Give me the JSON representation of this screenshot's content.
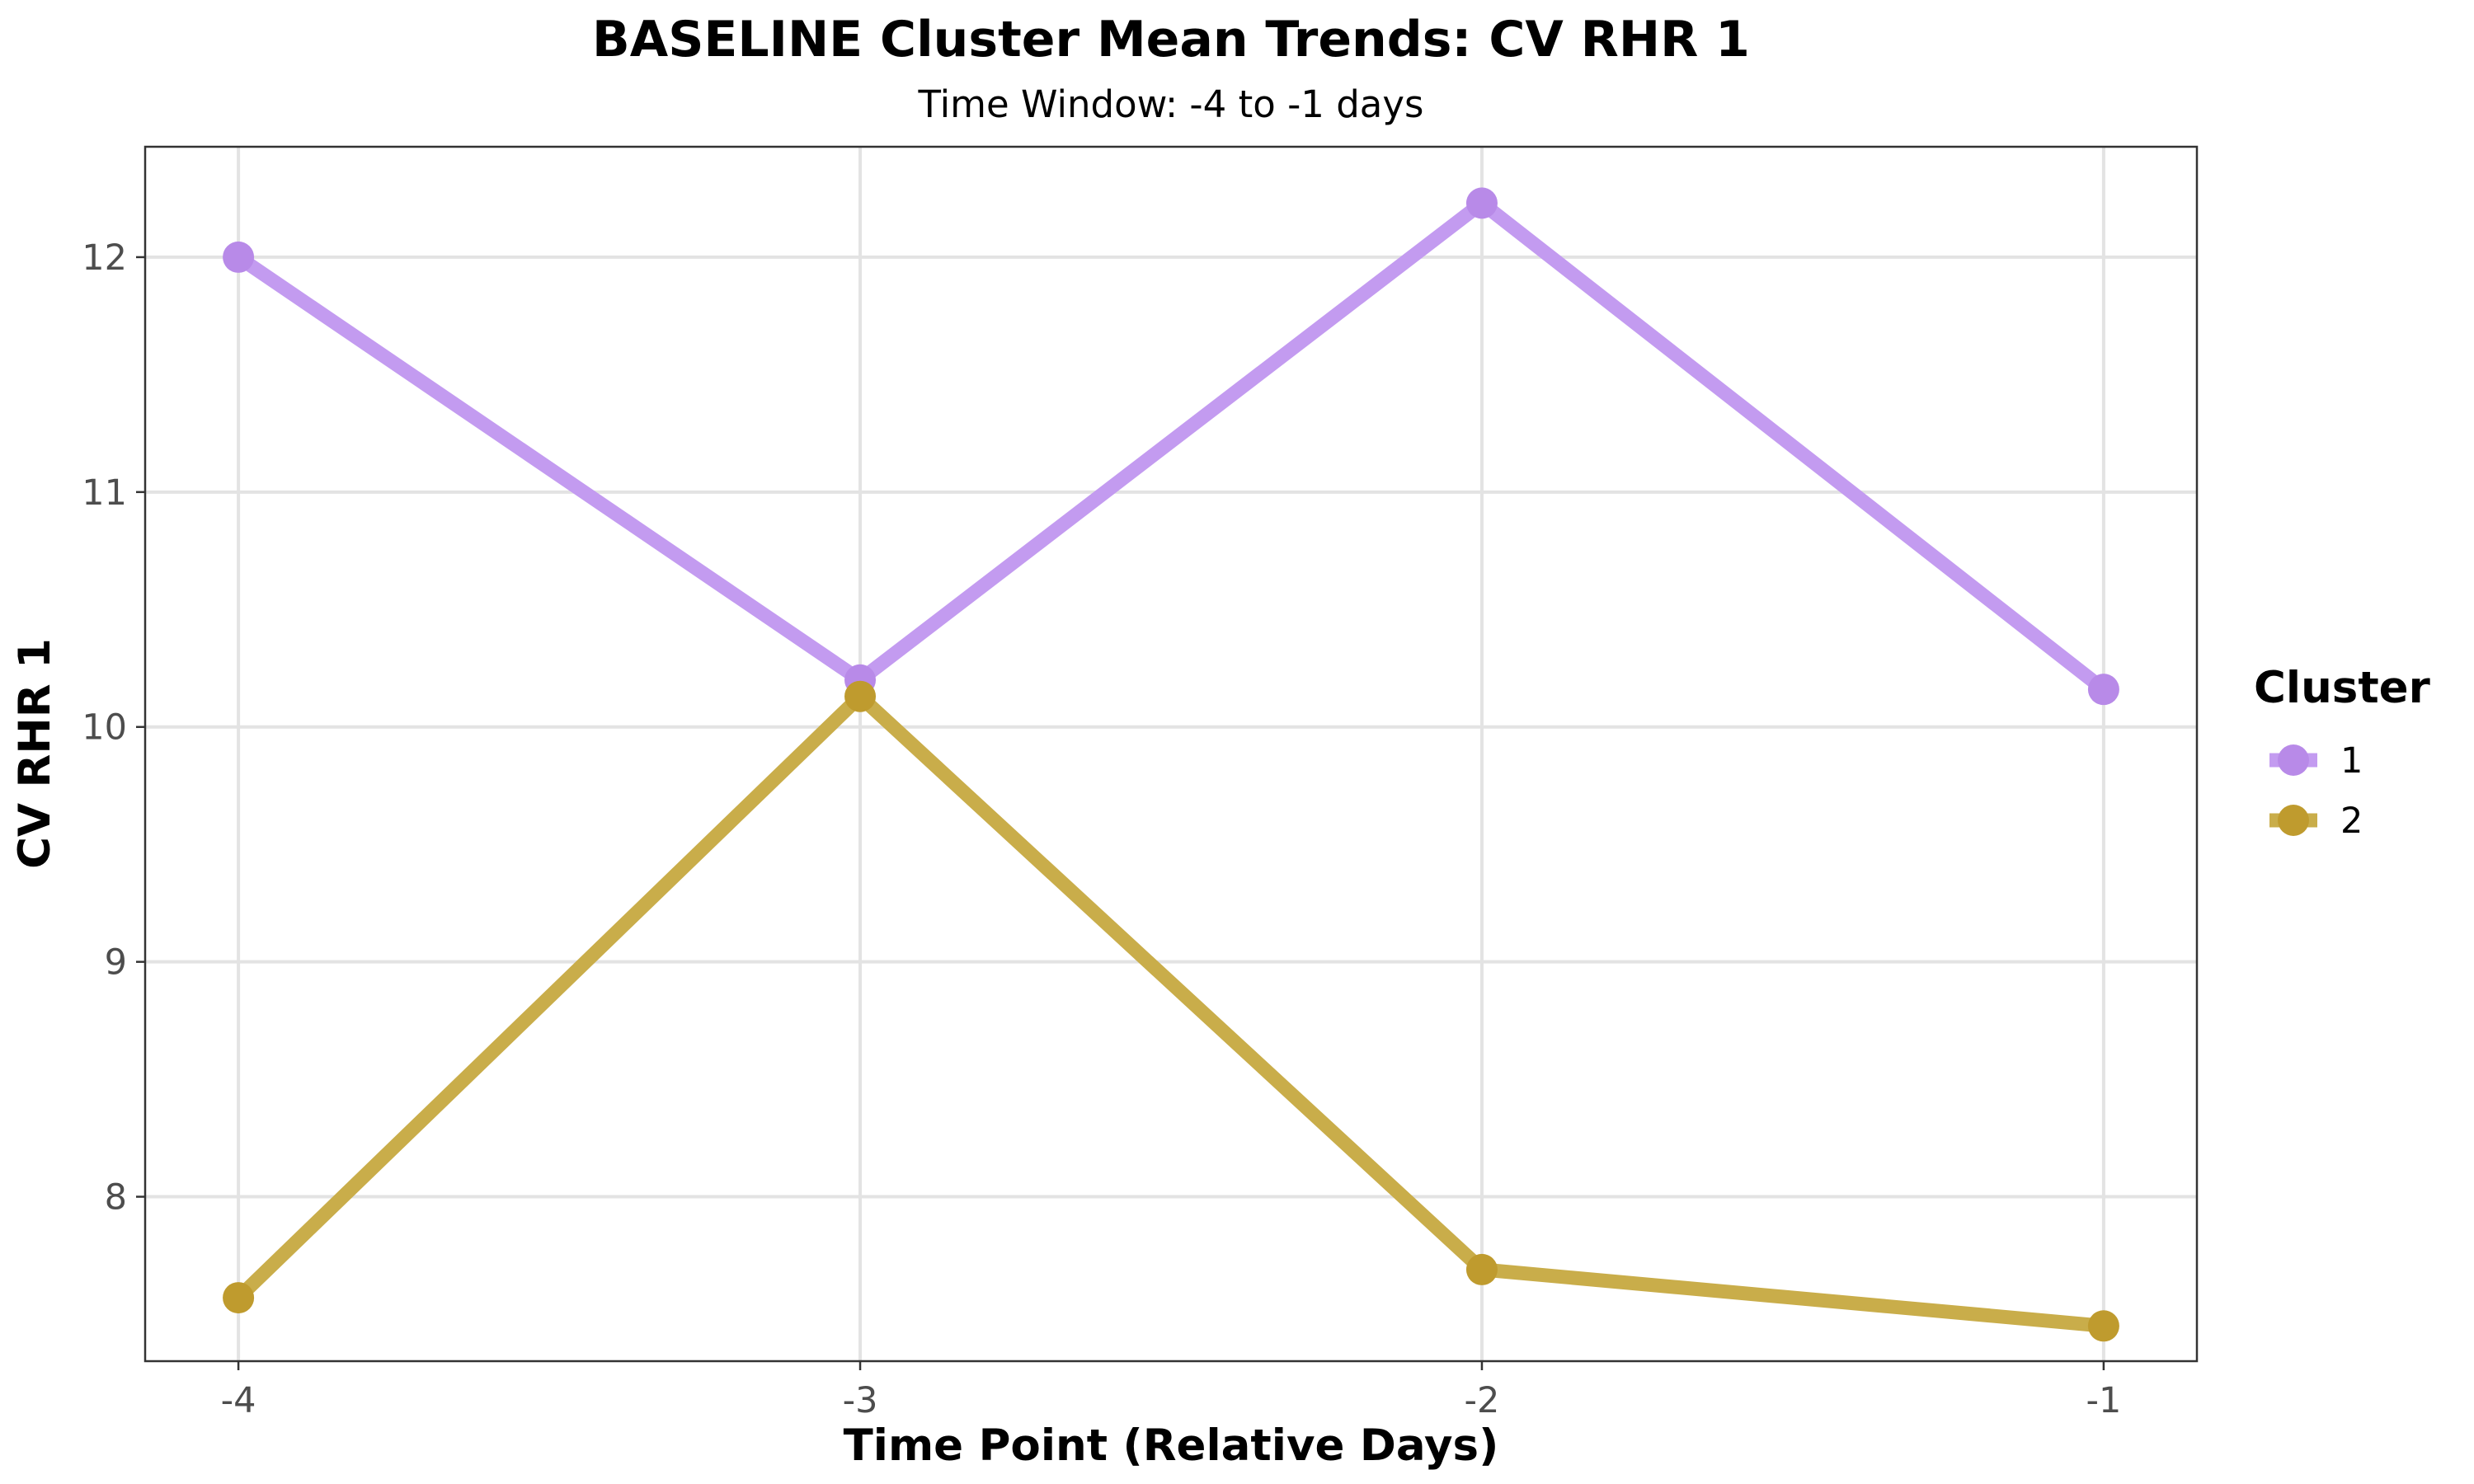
{
  "chart_data": {
    "type": "line",
    "title": "BASELINE Cluster Mean Trends: CV RHR 1",
    "subtitle": "Time Window: -4 to -1 days",
    "xlabel": "Time Point (Relative Days)",
    "ylabel": "CV RHR 1",
    "x": [
      -4,
      -3,
      -2,
      -1
    ],
    "x_tick_labels": [
      "-4",
      "-3",
      "-2",
      "-1"
    ],
    "xlim": [
      -4.15,
      -0.85
    ],
    "y_ticks": [
      8,
      9,
      10,
      11,
      12
    ],
    "y_tick_labels": [
      "8",
      "9",
      "10",
      "11",
      "12"
    ],
    "ylim": [
      7.3,
      12.47
    ],
    "grid": true,
    "legend": {
      "title": "Cluster",
      "position": "right"
    },
    "series": [
      {
        "name": "1",
        "color": "#c39bf0",
        "point_color": "#b88ae8",
        "values": [
          12.0,
          10.2,
          12.23,
          10.16
        ]
      },
      {
        "name": "2",
        "color": "#c9ad4a",
        "point_color": "#bf9b2e",
        "values": [
          7.57,
          10.13,
          7.69,
          7.45
        ]
      }
    ]
  }
}
